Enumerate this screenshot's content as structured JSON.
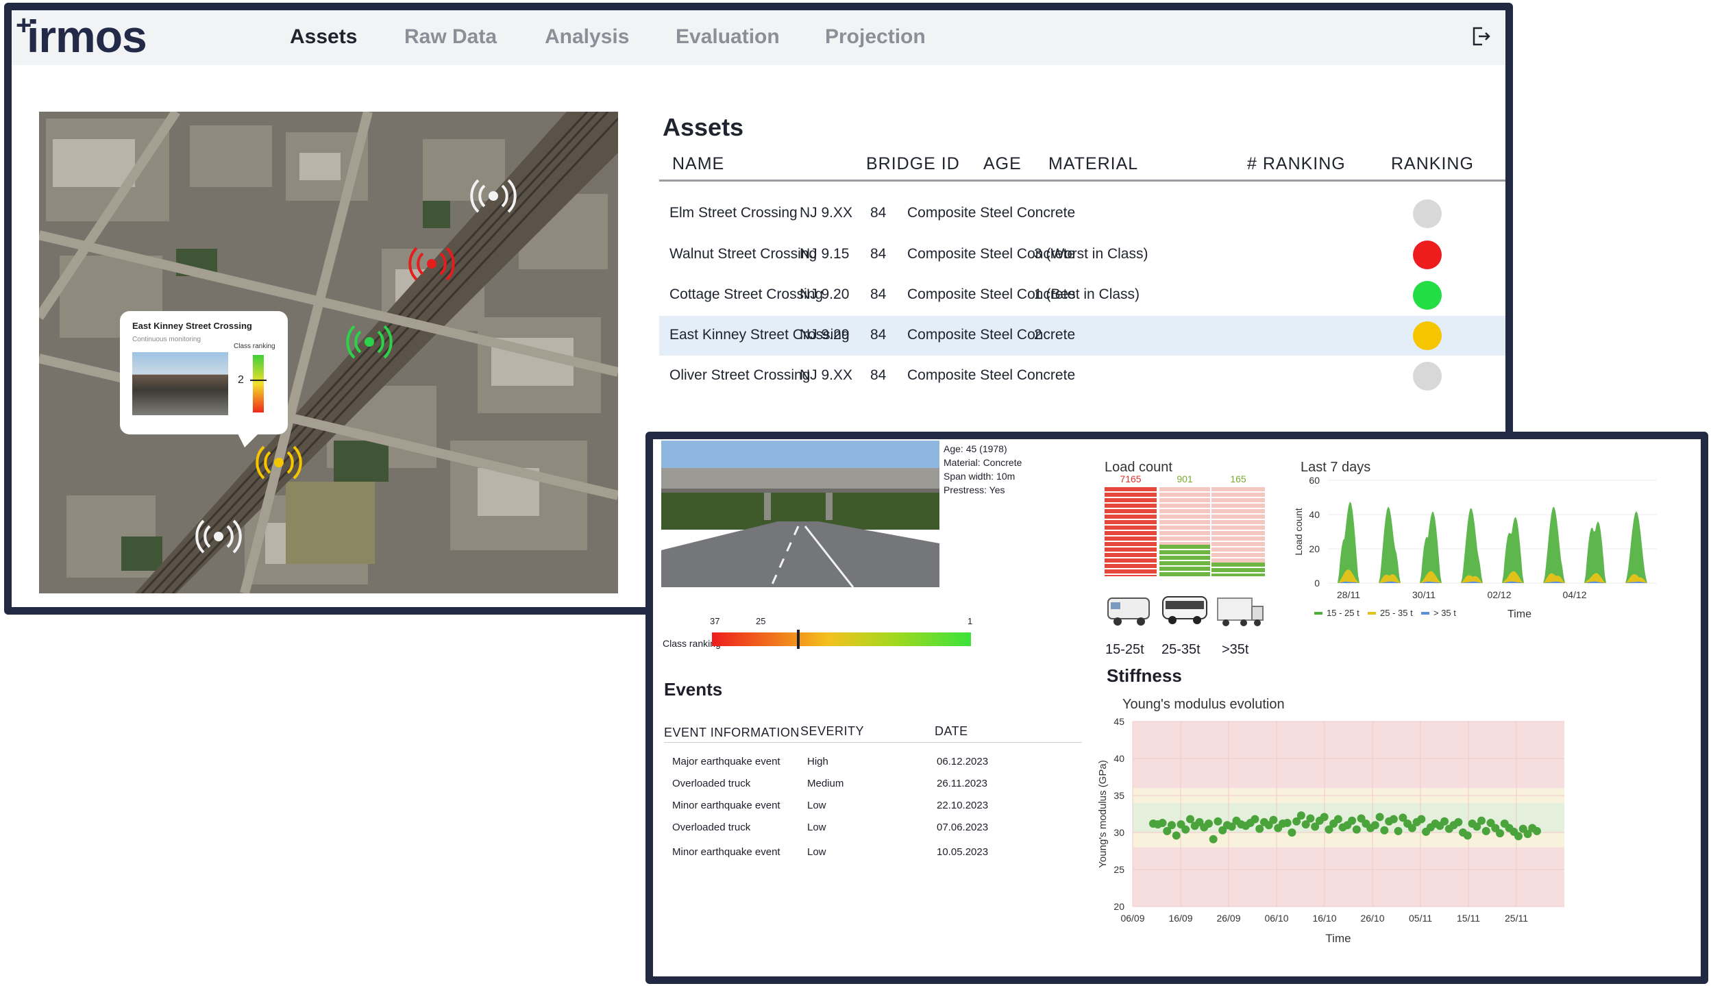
{
  "app": {
    "logo": "irmos",
    "logo_plus": "+"
  },
  "nav": {
    "tabs": [
      {
        "label": "Assets"
      },
      {
        "label": "Raw Data"
      },
      {
        "label": "Analysis"
      },
      {
        "label": "Evaluation"
      },
      {
        "label": "Projection"
      }
    ],
    "active": "Assets"
  },
  "map": {
    "popup": {
      "title": "East Kinney Street Crossing",
      "subtitle": "Continuous monitoring",
      "rank_label": "Class ranking",
      "rank_value": "2"
    }
  },
  "assets": {
    "title": "Assets",
    "columns": [
      "NAME",
      "BRIDGE ID",
      "AGE",
      "MATERIAL",
      "# RANKING",
      "RANKING"
    ],
    "rows": [
      {
        "name": "Elm Street Crossing",
        "id": "NJ 9.XX",
        "age": "84",
        "material": "Composite Steel Concrete",
        "ranking": "",
        "color": "#d8d8d8"
      },
      {
        "name": "Walnut Street Crossing",
        "id": "NJ 9.15",
        "age": "84",
        "material": "Composite Steel Concrete",
        "ranking": "3 (Worst in Class)",
        "color": "#ee1d1d"
      },
      {
        "name": "Cottage Street Crossing",
        "id": "NJ 9.20",
        "age": "84",
        "material": "Composite Steel Concrete",
        "ranking": "1 (Best in Class)",
        "color": "#22dd44"
      },
      {
        "name": "East Kinney Street Crossing",
        "id": "NJ 9.29",
        "age": "84",
        "material": "Composite Steel Concrete",
        "ranking": "2",
        "color": "#f5c500"
      },
      {
        "name": "Oliver Street Crossing",
        "id": "NJ 9.XX",
        "age": "84",
        "material": "Composite Steel Concrete",
        "ranking": "",
        "color": "#d8d8d8"
      }
    ]
  },
  "detail": {
    "info": {
      "age": "Age: 45 (1978)",
      "material": "Material: Concrete",
      "span": "Span width: 10m",
      "prestress": "Prestress: Yes"
    },
    "class_ranking": {
      "label": "Class ranking",
      "left": "37",
      "mid": "25",
      "right": "1",
      "value": 25
    },
    "load_count": {
      "title": "Load count",
      "values": [
        7165,
        901,
        165
      ],
      "value_labels": [
        "7165",
        "901",
        "165"
      ],
      "categories": [
        "15-25t",
        "25-35t",
        ">35t"
      ]
    },
    "events": {
      "title": "Events",
      "columns": [
        "EVENT INFORMATION",
        "SEVERITY",
        "DATE"
      ],
      "rows": [
        {
          "info": "Major earthquake event",
          "severity": "High",
          "date": "06.12.2023"
        },
        {
          "info": "Overloaded truck",
          "severity": "Medium",
          "date": "26.11.2023"
        },
        {
          "info": "Minor earthquake event",
          "severity": "Low",
          "date": "22.10.2023"
        },
        {
          "info": "Overloaded truck",
          "severity": "Low",
          "date": "07.06.2023"
        },
        {
          "info": "Minor earthquake event",
          "severity": "Low",
          "date": "10.05.2023"
        }
      ]
    },
    "stiffness": {
      "title": "Stiffness"
    }
  },
  "chart_data": [
    {
      "type": "area",
      "title": "Last 7 days",
      "xlabel": "Time",
      "ylabel": "Load count",
      "ylim": [
        0,
        60
      ],
      "yticks": [
        "0",
        "20",
        "40",
        "60"
      ],
      "xticks": [
        "28/11",
        "30/11",
        "02/12",
        "04/12"
      ],
      "series": [
        {
          "name": "15 - 25 t",
          "color": "#4caf3a",
          "peaks": [
            52,
            47,
            48,
            45,
            47,
            45,
            47,
            42
          ]
        },
        {
          "name": "25 - 35 t",
          "color": "#e1c21a",
          "peaks": [
            8,
            7,
            7,
            6,
            7,
            7,
            6,
            6
          ]
        },
        {
          "name": "> 35 t",
          "color": "#5b8fe0",
          "peaks": [
            1,
            1,
            1,
            1,
            1,
            1,
            1,
            1
          ]
        }
      ],
      "legend": "bottom"
    },
    {
      "type": "scatter",
      "title": "Young's modulus evolution",
      "xlabel": "Time",
      "ylabel": "Young's modulus (GPa)",
      "ylim": [
        20,
        45
      ],
      "yticks": [
        "20",
        "25",
        "30",
        "35",
        "40",
        "45"
      ],
      "xticks": [
        "06/09",
        "16/09",
        "26/09",
        "06/10",
        "16/10",
        "26/10",
        "05/11",
        "15/11",
        "25/11"
      ],
      "bands": [
        {
          "from": 20,
          "to": 28,
          "color": "#f6dede"
        },
        {
          "from": 28,
          "to": 30,
          "color": "#f8f2dc"
        },
        {
          "from": 30,
          "to": 34,
          "color": "#e4efdc"
        },
        {
          "from": 34,
          "to": 36,
          "color": "#f8f2dc"
        },
        {
          "from": 36,
          "to": 45,
          "color": "#f6dede"
        }
      ],
      "y": [
        31.2,
        31.1,
        31.3,
        30.2,
        31.0,
        29.6,
        31.1,
        30.4,
        31.8,
        30.9,
        31.4,
        30.7,
        31.2,
        29.1,
        31.5,
        30.3,
        31.0,
        30.8,
        31.6,
        31.1,
        30.9,
        31.3,
        31.8,
        30.5,
        31.4,
        31.0,
        31.7,
        30.6,
        31.2,
        31.3,
        30.0,
        31.5,
        32.3,
        31.1,
        31.9,
        30.8,
        31.6,
        32.1,
        30.4,
        31.2,
        31.8,
        30.7,
        31.0,
        31.6,
        30.4,
        31.9,
        31.2,
        30.6,
        31.0,
        32.1,
        30.3,
        31.5,
        31.8,
        30.2,
        32.0,
        31.2,
        30.6,
        31.4,
        31.8,
        30.1,
        30.7,
        31.2,
        30.9,
        31.5,
        30.5,
        31.0,
        31.4,
        30.0,
        29.6,
        31.2,
        30.8,
        31.6,
        30.2,
        31.3,
        30.6,
        29.9,
        31.2,
        30.6,
        30.1,
        29.5,
        30.5,
        29.8,
        30.6,
        30.2
      ]
    }
  ]
}
